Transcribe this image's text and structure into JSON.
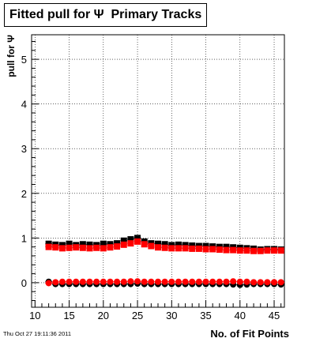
{
  "title": "Fitted pull for Ψ  Primary Tracks",
  "timestamp": "Thu Oct 27 19:11:36 2011",
  "chart_data": {
    "type": "scatter",
    "xlabel": "No. of Fit Points",
    "ylabel": "pull for Ψ",
    "xlim": [
      9.5,
      46.5
    ],
    "ylim": [
      -0.55,
      5.55
    ],
    "x_ticks": [
      10,
      15,
      20,
      25,
      30,
      35,
      40,
      45
    ],
    "y_ticks": [
      0,
      1,
      2,
      3,
      4,
      5
    ],
    "grid": true,
    "series": [
      {
        "color": "#000000",
        "marker": "square",
        "x": [
          12,
          13,
          14,
          15,
          16,
          17,
          18,
          19,
          20,
          21,
          22,
          23,
          24,
          25,
          26,
          27,
          28,
          29,
          30,
          31,
          32,
          33,
          34,
          35,
          36,
          37,
          38,
          39,
          40,
          41,
          42,
          43,
          44,
          45,
          46
        ],
        "values": [
          0.87,
          0.85,
          0.84,
          0.87,
          0.84,
          0.86,
          0.85,
          0.84,
          0.87,
          0.86,
          0.88,
          0.94,
          0.97,
          1.0,
          0.92,
          0.88,
          0.87,
          0.86,
          0.84,
          0.85,
          0.84,
          0.83,
          0.82,
          0.82,
          0.81,
          0.8,
          0.8,
          0.79,
          0.78,
          0.77,
          0.76,
          0.74,
          0.75,
          0.75,
          0.74
        ]
      },
      {
        "color": "#ff0000",
        "marker": "square",
        "x": [
          12,
          13,
          14,
          15,
          16,
          17,
          18,
          19,
          20,
          21,
          22,
          23,
          24,
          25,
          26,
          27,
          28,
          29,
          30,
          31,
          32,
          33,
          34,
          35,
          36,
          37,
          38,
          39,
          40,
          41,
          42,
          43,
          44,
          45,
          46
        ],
        "values": [
          0.8,
          0.79,
          0.77,
          0.78,
          0.79,
          0.78,
          0.77,
          0.78,
          0.77,
          0.79,
          0.81,
          0.85,
          0.88,
          0.92,
          0.86,
          0.82,
          0.79,
          0.78,
          0.77,
          0.77,
          0.77,
          0.76,
          0.76,
          0.75,
          0.75,
          0.74,
          0.73,
          0.73,
          0.72,
          0.72,
          0.71,
          0.71,
          0.72,
          0.72,
          0.72
        ]
      },
      {
        "color": "#000000",
        "marker": "circle",
        "x": [
          12,
          13,
          14,
          15,
          16,
          17,
          18,
          19,
          20,
          21,
          22,
          23,
          24,
          25,
          26,
          27,
          28,
          29,
          30,
          31,
          32,
          33,
          34,
          35,
          36,
          37,
          38,
          39,
          40,
          41,
          42,
          43,
          44,
          45,
          46
        ],
        "values": [
          0.02,
          -0.03,
          -0.03,
          -0.03,
          -0.03,
          -0.03,
          -0.03,
          -0.03,
          -0.03,
          -0.03,
          -0.03,
          -0.03,
          -0.03,
          -0.02,
          -0.03,
          -0.03,
          -0.03,
          -0.03,
          -0.03,
          -0.03,
          -0.03,
          -0.03,
          -0.03,
          -0.03,
          -0.03,
          -0.03,
          -0.03,
          -0.04,
          -0.05,
          -0.04,
          -0.03,
          -0.03,
          -0.03,
          -0.03,
          -0.04
        ]
      },
      {
        "color": "#ff0000",
        "marker": "circle",
        "x": [
          12,
          13,
          14,
          15,
          16,
          17,
          18,
          19,
          20,
          21,
          22,
          23,
          24,
          25,
          26,
          27,
          28,
          29,
          30,
          31,
          32,
          33,
          34,
          35,
          36,
          37,
          38,
          39,
          40,
          41,
          42,
          43,
          44,
          45,
          46
        ],
        "values": [
          -0.01,
          0.01,
          0.02,
          0.02,
          0.02,
          0.02,
          0.02,
          0.02,
          0.02,
          0.02,
          0.02,
          0.02,
          0.03,
          0.03,
          0.02,
          0.02,
          0.02,
          0.02,
          0.02,
          0.02,
          0.02,
          0.02,
          0.02,
          0.02,
          0.02,
          0.02,
          0.02,
          0.03,
          0.02,
          0.02,
          0.01,
          0.01,
          0.01,
          0.01,
          0.01
        ]
      }
    ]
  }
}
